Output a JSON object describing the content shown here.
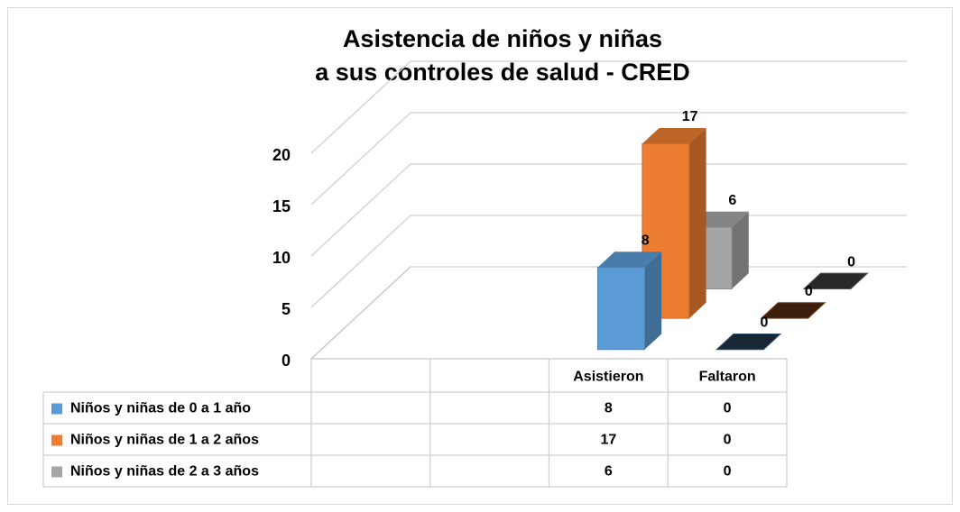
{
  "chart_data": {
    "type": "bar3d",
    "title": [
      "Asistencia de niños y niñas",
      "a sus controles de salud - CRED"
    ],
    "categories": [
      null,
      null,
      "Asistieron",
      "Faltaron"
    ],
    "series": [
      {
        "name": "Niños y niñas de 0 a 1 año",
        "color": "#5b9bd5",
        "values": [
          null,
          null,
          8,
          0
        ]
      },
      {
        "name": "Niños y niñas de 1 a 2 años",
        "color": "#ed7d31",
        "values": [
          null,
          null,
          17,
          0
        ]
      },
      {
        "name": "Niños y niñas de 2 a 3 años",
        "color": "#a5a5a5",
        "values": [
          null,
          null,
          6,
          0
        ]
      }
    ],
    "ylim": [
      0,
      20
    ],
    "yticks": [
      0,
      5,
      10,
      15,
      20
    ],
    "grid": true,
    "legend": "table"
  }
}
